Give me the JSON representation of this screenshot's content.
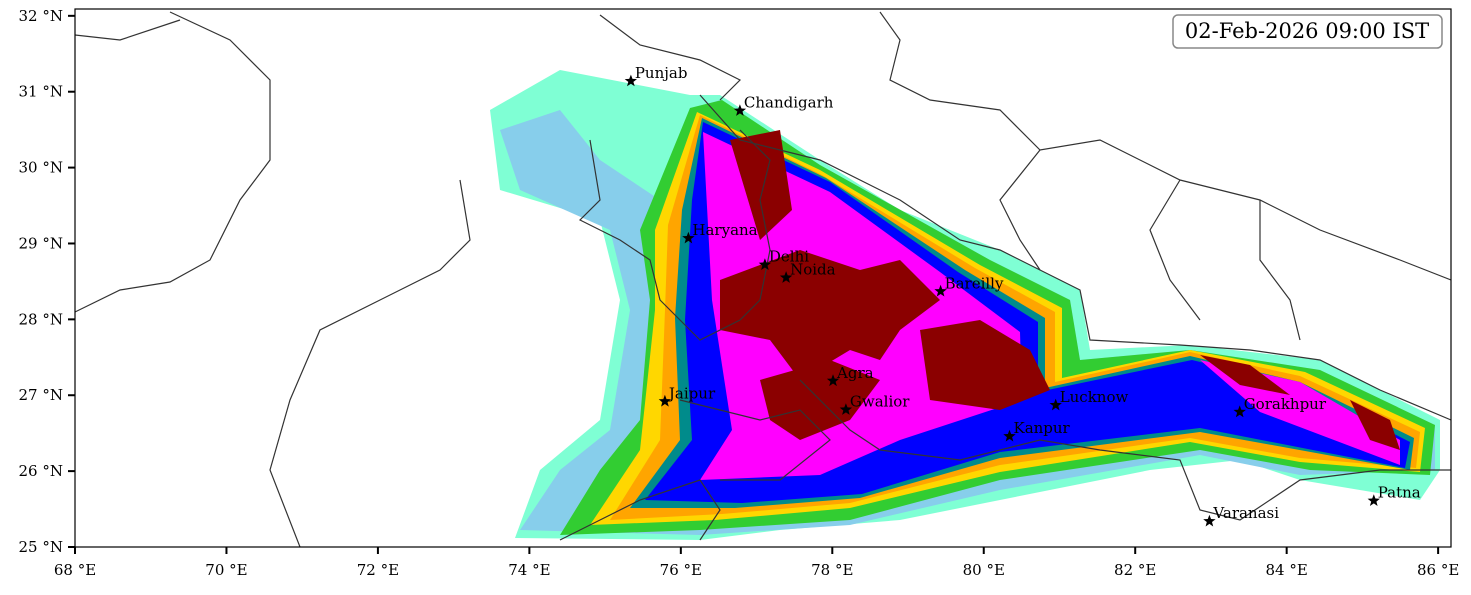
{
  "map": {
    "timestamp": "02-Feb-2026 09:00 IST",
    "xlim": [
      68,
      86.17
    ],
    "ylim": [
      25,
      32.09
    ],
    "xticks": [
      {
        "value": 68,
        "label": "68 °E"
      },
      {
        "value": 70,
        "label": "70 °E"
      },
      {
        "value": 72,
        "label": "72 °E"
      },
      {
        "value": 74,
        "label": "74 °E"
      },
      {
        "value": 76,
        "label": "76 °E"
      },
      {
        "value": 78,
        "label": "78 °E"
      },
      {
        "value": 80,
        "label": "80 °E"
      },
      {
        "value": 82,
        "label": "82 °E"
      },
      {
        "value": 84,
        "label": "84 °E"
      },
      {
        "value": 86,
        "label": "86 °E"
      }
    ],
    "yticks": [
      {
        "value": 25,
        "label": "25 °N"
      },
      {
        "value": 26,
        "label": "26 °N"
      },
      {
        "value": 27,
        "label": "27 °N"
      },
      {
        "value": 28,
        "label": "28 °N"
      },
      {
        "value": 29,
        "label": "29 °N"
      },
      {
        "value": 30,
        "label": "30 °N"
      },
      {
        "value": 31,
        "label": "31 °N"
      },
      {
        "value": 32,
        "label": "32 °N"
      }
    ],
    "cities": [
      {
        "name": "Punjab",
        "lon": 75.34,
        "lat": 31.14
      },
      {
        "name": "Chandigarh",
        "lon": 76.78,
        "lat": 30.75
      },
      {
        "name": "Haryana",
        "lon": 76.1,
        "lat": 29.07
      },
      {
        "name": "Delhi",
        "lon": 77.11,
        "lat": 28.72
      },
      {
        "name": "Noida",
        "lon": 77.39,
        "lat": 28.55
      },
      {
        "name": "Bareilly",
        "lon": 79.43,
        "lat": 28.37
      },
      {
        "name": "Agra",
        "lon": 78.01,
        "lat": 27.19
      },
      {
        "name": "Gwalior",
        "lon": 78.18,
        "lat": 26.81
      },
      {
        "name": "Jaipur",
        "lon": 75.79,
        "lat": 26.92
      },
      {
        "name": "Lucknow",
        "lon": 80.95,
        "lat": 26.87
      },
      {
        "name": "Kanpur",
        "lon": 80.34,
        "lat": 26.46
      },
      {
        "name": "Varanasi",
        "lon": 82.98,
        "lat": 25.34
      },
      {
        "name": "Gorakhpur",
        "lon": 83.38,
        "lat": 26.78
      },
      {
        "name": "Patna",
        "lon": 85.15,
        "lat": 25.61
      }
    ]
  }
}
